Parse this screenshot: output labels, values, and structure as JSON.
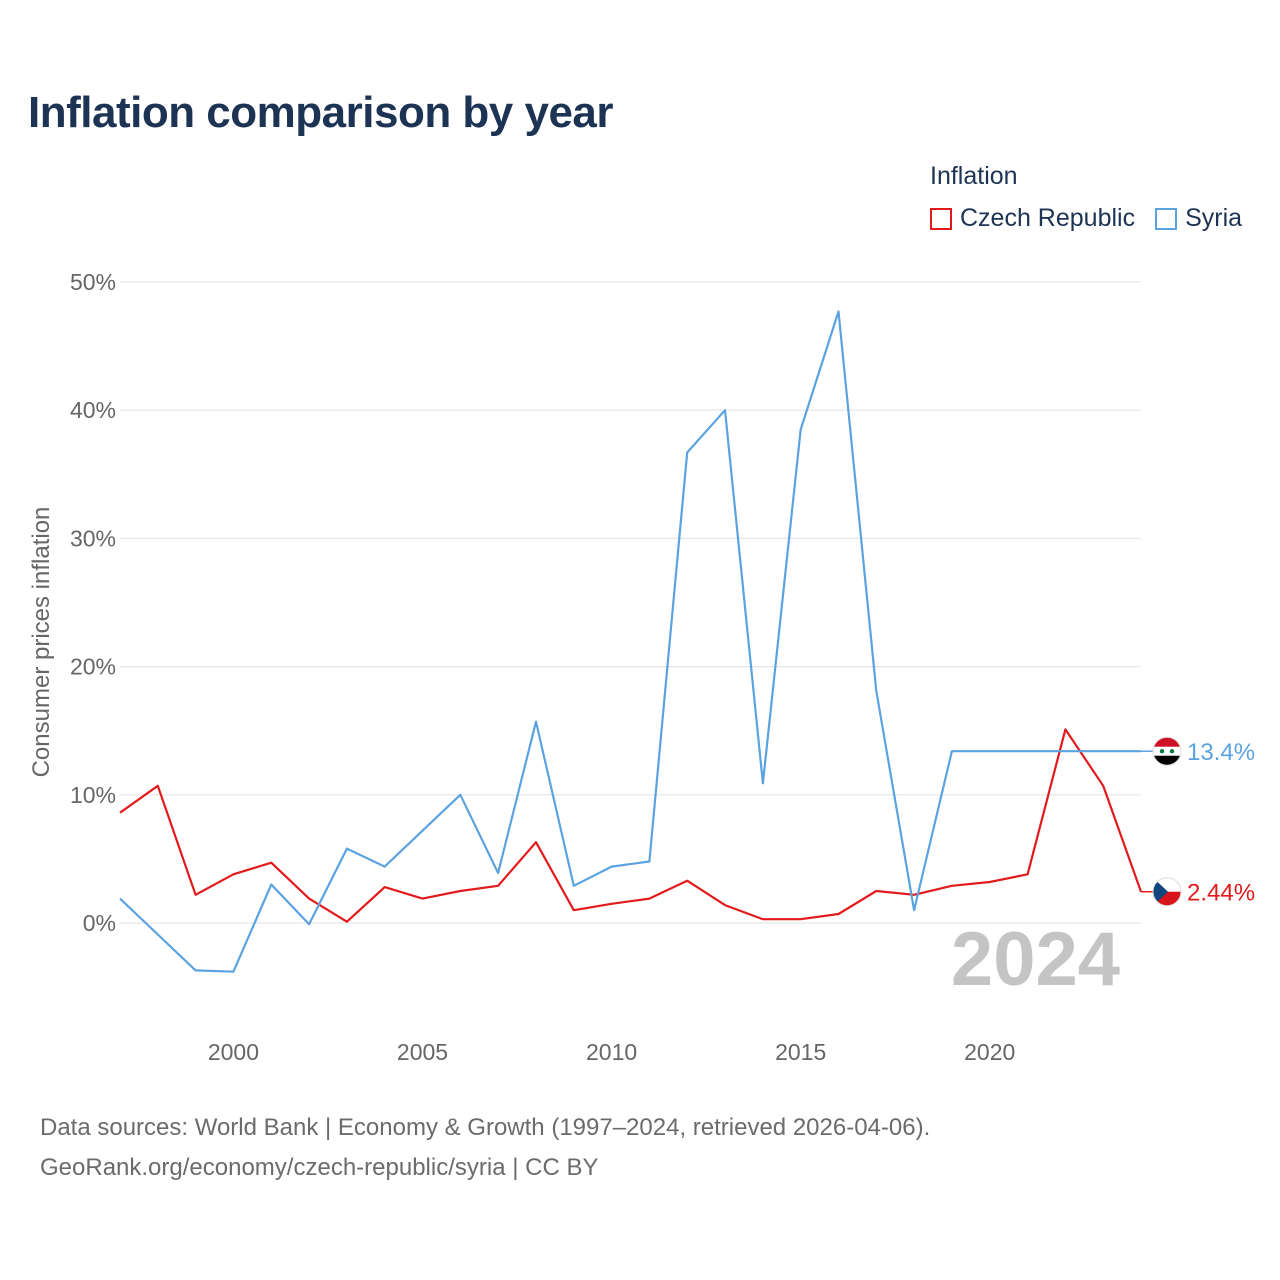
{
  "title": "Inflation comparison by year",
  "legend": {
    "title": "Inflation",
    "items": [
      {
        "label": "Czech Republic",
        "color": "#e31a1c"
      },
      {
        "label": "Syria",
        "color": "#5ba3e0"
      }
    ]
  },
  "year_watermark": "2024",
  "footer": {
    "line1": "Data sources: World Bank | Economy & Growth (1997–2024, retrieved 2026-04-06).",
    "line2": "GeoRank.org/economy/czech-republic/syria | CC BY"
  },
  "chart_data": {
    "type": "line",
    "title": "Inflation comparison by year",
    "xlabel": "",
    "ylabel": "Consumer prices inflation",
    "xlim": [
      1997,
      2024
    ],
    "ylim": [
      -6,
      50
    ],
    "yticks": [
      0,
      10,
      20,
      30,
      40,
      50
    ],
    "ytick_labels": [
      "0%",
      "10%",
      "20%",
      "30%",
      "40%",
      "50%"
    ],
    "xticks": [
      2000,
      2005,
      2010,
      2015,
      2020
    ],
    "xtick_labels": [
      "2000",
      "2005",
      "2010",
      "2015",
      "2020"
    ],
    "x": [
      1997,
      1998,
      1999,
      2000,
      2001,
      2002,
      2003,
      2004,
      2005,
      2006,
      2007,
      2008,
      2009,
      2010,
      2011,
      2012,
      2013,
      2014,
      2015,
      2016,
      2017,
      2018,
      2019,
      2020,
      2021,
      2022,
      2023,
      2024
    ],
    "series": [
      {
        "name": "Czech Republic",
        "color": "#e31a1c",
        "end_label": "2.44%",
        "values": [
          8.6,
          10.7,
          2.2,
          3.8,
          4.7,
          1.9,
          0.1,
          2.8,
          1.9,
          2.5,
          2.9,
          6.3,
          1.0,
          1.5,
          1.9,
          3.3,
          1.4,
          0.3,
          0.3,
          0.7,
          2.5,
          2.2,
          2.9,
          3.2,
          3.8,
          15.1,
          10.7,
          2.44
        ]
      },
      {
        "name": "Syria",
        "color": "#5ba3e0",
        "end_label": "13.4%",
        "values": [
          1.9,
          -0.9,
          -3.7,
          -3.8,
          3.0,
          -0.1,
          5.8,
          4.4,
          7.2,
          10.0,
          3.9,
          15.7,
          2.9,
          4.4,
          4.8,
          36.7,
          40.0,
          10.9,
          38.5,
          47.7,
          18.1,
          1.0,
          13.4,
          13.4,
          13.4,
          13.4,
          13.4,
          13.4
        ]
      }
    ]
  }
}
